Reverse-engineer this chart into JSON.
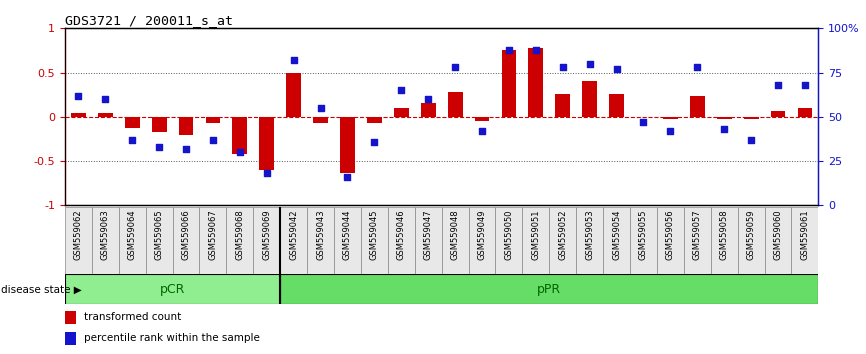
{
  "title": "GDS3721 / 200011_s_at",
  "samples": [
    "GSM559062",
    "GSM559063",
    "GSM559064",
    "GSM559065",
    "GSM559066",
    "GSM559067",
    "GSM559068",
    "GSM559069",
    "GSM559042",
    "GSM559043",
    "GSM559044",
    "GSM559045",
    "GSM559046",
    "GSM559047",
    "GSM559048",
    "GSM559049",
    "GSM559050",
    "GSM559051",
    "GSM559052",
    "GSM559053",
    "GSM559054",
    "GSM559055",
    "GSM559056",
    "GSM559057",
    "GSM559058",
    "GSM559059",
    "GSM559060",
    "GSM559061"
  ],
  "transformed_count": [
    0.04,
    0.04,
    -0.13,
    -0.17,
    -0.2,
    -0.07,
    -0.42,
    -0.6,
    0.5,
    -0.07,
    -0.63,
    -0.07,
    0.1,
    0.16,
    0.28,
    -0.05,
    0.76,
    0.78,
    0.26,
    0.4,
    0.26,
    0.0,
    -0.03,
    0.23,
    -0.03,
    -0.03,
    0.07,
    0.1
  ],
  "percentile_rank": [
    62,
    60,
    37,
    33,
    32,
    37,
    30,
    18,
    82,
    55,
    16,
    36,
    65,
    60,
    78,
    42,
    88,
    88,
    78,
    80,
    77,
    47,
    42,
    78,
    43,
    37,
    68,
    68
  ],
  "bar_color": "#CC0000",
  "dot_color": "#1414CC",
  "ylim_left": [
    -1,
    1
  ],
  "yticks_left": [
    -1,
    -0.5,
    0,
    0.5,
    1
  ],
  "yticks_right": [
    0,
    25,
    50,
    75,
    100
  ],
  "hline_color": "#CC0000",
  "dotted_hline_color": "#555555",
  "pcr_count": 8,
  "ppr_count": 20,
  "pcr_color": "#90EE90",
  "ppr_color": "#66DD66",
  "group_text_color": "#006600",
  "disease_state_label": "disease state",
  "legend_bar_label": "transformed count",
  "legend_dot_label": "percentile rank within the sample"
}
